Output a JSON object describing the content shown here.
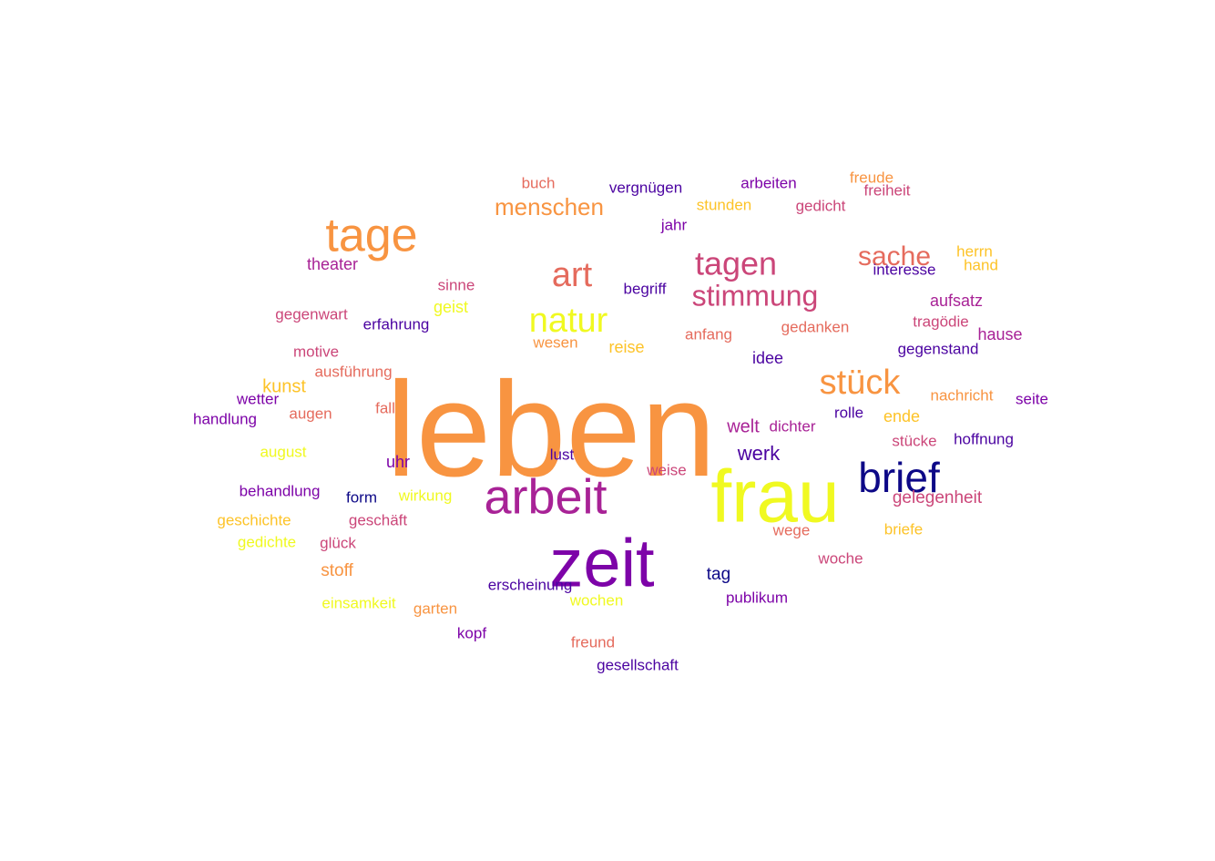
{
  "chart_data": {
    "type": "wordcloud",
    "title": "",
    "palette": {
      "c1": "#0d0887",
      "c2": "#4b03a1",
      "c3": "#7d03a8",
      "c4": "#a82296",
      "c5": "#cb4679",
      "c6": "#e56b5d",
      "c7": "#f89441",
      "c8": "#fdc328",
      "c9": "#f0f921"
    },
    "words": [
      {
        "text": "leben",
        "color": "c7"
      },
      {
        "text": "frau",
        "color": "c9"
      },
      {
        "text": "zeit",
        "color": "c3"
      },
      {
        "text": "arbeit",
        "color": "c4"
      },
      {
        "text": "brief",
        "color": "c1"
      },
      {
        "text": "tage",
        "color": "c7"
      },
      {
        "text": "natur",
        "color": "c9"
      },
      {
        "text": "art",
        "color": "c6"
      },
      {
        "text": "tagen",
        "color": "c5"
      },
      {
        "text": "stimmung",
        "color": "c5"
      },
      {
        "text": "stück",
        "color": "c7"
      },
      {
        "text": "sache",
        "color": "c6"
      },
      {
        "text": "menschen",
        "color": "c7"
      },
      {
        "text": "werk",
        "color": "c2"
      },
      {
        "text": "welt",
        "color": "c4"
      },
      {
        "text": "buch",
        "color": "c6"
      },
      {
        "text": "vergnügen",
        "color": "c2"
      },
      {
        "text": "arbeiten",
        "color": "c3"
      },
      {
        "text": "freude",
        "color": "c7"
      },
      {
        "text": "freiheit",
        "color": "c5"
      },
      {
        "text": "stunden",
        "color": "c8"
      },
      {
        "text": "gedicht",
        "color": "c5"
      },
      {
        "text": "jahr",
        "color": "c3"
      },
      {
        "text": "herrn",
        "color": "c8"
      },
      {
        "text": "hand",
        "color": "c8"
      },
      {
        "text": "interesse",
        "color": "c2"
      },
      {
        "text": "theater",
        "color": "c4"
      },
      {
        "text": "sinne",
        "color": "c5"
      },
      {
        "text": "begriff",
        "color": "c2"
      },
      {
        "text": "geist",
        "color": "c9"
      },
      {
        "text": "aufsatz",
        "color": "c4"
      },
      {
        "text": "gegenwart",
        "color": "c5"
      },
      {
        "text": "erfahrung",
        "color": "c2"
      },
      {
        "text": "tragödie",
        "color": "c5"
      },
      {
        "text": "anfang",
        "color": "c6"
      },
      {
        "text": "gedanken",
        "color": "c6"
      },
      {
        "text": "hause",
        "color": "c4"
      },
      {
        "text": "wesen",
        "color": "c7"
      },
      {
        "text": "reise",
        "color": "c8"
      },
      {
        "text": "gegenstand",
        "color": "c2"
      },
      {
        "text": "motive",
        "color": "c5"
      },
      {
        "text": "idee",
        "color": "c2"
      },
      {
        "text": "ausführung",
        "color": "c6"
      },
      {
        "text": "kunst",
        "color": "c8"
      },
      {
        "text": "nachricht",
        "color": "c7"
      },
      {
        "text": "seite",
        "color": "c3"
      },
      {
        "text": "wetter",
        "color": "c3"
      },
      {
        "text": "fall",
        "color": "c6"
      },
      {
        "text": "augen",
        "color": "c6"
      },
      {
        "text": "rolle",
        "color": "c2"
      },
      {
        "text": "ende",
        "color": "c8"
      },
      {
        "text": "handlung",
        "color": "c3"
      },
      {
        "text": "dichter",
        "color": "c4"
      },
      {
        "text": "stücke",
        "color": "c5"
      },
      {
        "text": "hoffnung",
        "color": "c2"
      },
      {
        "text": "august",
        "color": "c9"
      },
      {
        "text": "lust",
        "color": "c2"
      },
      {
        "text": "uhr",
        "color": "c3"
      },
      {
        "text": "weise",
        "color": "c5"
      },
      {
        "text": "behandlung",
        "color": "c3"
      },
      {
        "text": "form",
        "color": "c1"
      },
      {
        "text": "wirkung",
        "color": "c9"
      },
      {
        "text": "gelegenheit",
        "color": "c5"
      },
      {
        "text": "geschichte",
        "color": "c8"
      },
      {
        "text": "geschäft",
        "color": "c5"
      },
      {
        "text": "gedichte",
        "color": "c9"
      },
      {
        "text": "glück",
        "color": "c5"
      },
      {
        "text": "wege",
        "color": "c6"
      },
      {
        "text": "briefe",
        "color": "c8"
      },
      {
        "text": "stoff",
        "color": "c7"
      },
      {
        "text": "woche",
        "color": "c5"
      },
      {
        "text": "tag",
        "color": "c1"
      },
      {
        "text": "erscheinung",
        "color": "c2"
      },
      {
        "text": "publikum",
        "color": "c3"
      },
      {
        "text": "einsamkeit",
        "color": "c9"
      },
      {
        "text": "garten",
        "color": "c7"
      },
      {
        "text": "wochen",
        "color": "c9"
      },
      {
        "text": "kopf",
        "color": "c3"
      },
      {
        "text": "freund",
        "color": "c6"
      },
      {
        "text": "gesellschaft",
        "color": "c2"
      }
    ]
  }
}
